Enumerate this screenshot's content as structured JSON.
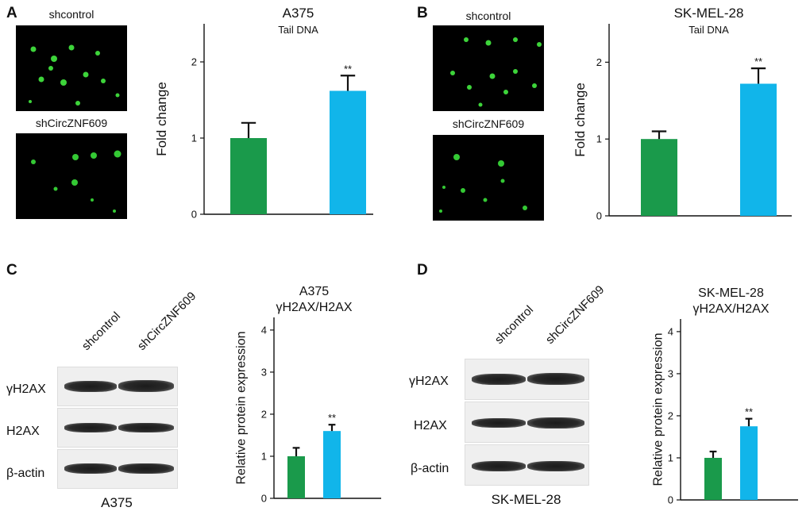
{
  "panels": {
    "A": {
      "letter": "A",
      "micro_top_label": "shcontrol",
      "micro_bottom_label": "shCircZNF609",
      "chart_title": "A375",
      "chart_subtitle": "Tail DNA",
      "ylabel": "Fold change"
    },
    "B": {
      "letter": "B",
      "micro_top_label": "shcontrol",
      "micro_bottom_label": "shCircZNF609",
      "chart_title": "SK-MEL-28",
      "chart_subtitle": "Tail DNA",
      "ylabel": "Fold change"
    },
    "C": {
      "letter": "C",
      "col1": "shcontrol",
      "col2": "shCircZNF609",
      "row1": "γH2AX",
      "row2": "H2AX",
      "row3": "β-actin",
      "blot_caption": "A375",
      "chart_title_line1": "A375",
      "chart_title_line2": "γH2AX/H2AX",
      "ylabel": "Relative protein expression"
    },
    "D": {
      "letter": "D",
      "col1": "shcontrol",
      "col2": "shCircZNF609",
      "row1": "γH2AX",
      "row2": "H2AX",
      "row3": "β-actin",
      "blot_caption": "SK-MEL-28",
      "chart_title_line1": "SK-MEL-28",
      "chart_title_line2": "γH2AX/H2AX",
      "ylabel": "Relative protein expression"
    }
  },
  "colors": {
    "shcontrol": "#1a9a4b",
    "shCircZNF609": "#11b5ea"
  },
  "chart_data": [
    {
      "id": "A",
      "type": "bar",
      "title": "A375",
      "subtitle": "Tail DNA",
      "ylabel": "Fold change",
      "categories": [
        "shcontrol",
        "shCircZNF609"
      ],
      "values": [
        1.0,
        1.62
      ],
      "errors": [
        0.2,
        0.2
      ],
      "annotations": [
        "",
        "**"
      ],
      "yticks": [
        0,
        1,
        2
      ],
      "ylim": [
        0,
        2.5
      ]
    },
    {
      "id": "B",
      "type": "bar",
      "title": "SK-MEL-28",
      "subtitle": "Tail DNA",
      "ylabel": "Fold change",
      "categories": [
        "shcontrol",
        "shCircZNF609"
      ],
      "values": [
        1.0,
        1.72
      ],
      "errors": [
        0.1,
        0.2
      ],
      "annotations": [
        "",
        "**"
      ],
      "yticks": [
        0,
        1,
        2
      ],
      "ylim": [
        0,
        2.5
      ]
    },
    {
      "id": "C",
      "type": "bar",
      "title": "A375 γH2AX/H2AX",
      "ylabel": "Relative protein expression",
      "categories": [
        "shcontrol",
        "shCircZNF609"
      ],
      "values": [
        1.0,
        1.6
      ],
      "errors": [
        0.2,
        0.15
      ],
      "annotations": [
        "",
        "**"
      ],
      "yticks": [
        0,
        1,
        2,
        3,
        4
      ],
      "ylim": [
        0,
        4.3
      ]
    },
    {
      "id": "D",
      "type": "bar",
      "title": "SK-MEL-28 γH2AX/H2AX",
      "ylabel": "Relative protein expression",
      "categories": [
        "shcontrol",
        "shCircZNF609"
      ],
      "values": [
        1.0,
        1.75
      ],
      "errors": [
        0.15,
        0.18
      ],
      "annotations": [
        "",
        "**"
      ],
      "yticks": [
        0,
        1,
        2,
        3,
        4
      ],
      "ylim": [
        0,
        4.3
      ]
    }
  ]
}
